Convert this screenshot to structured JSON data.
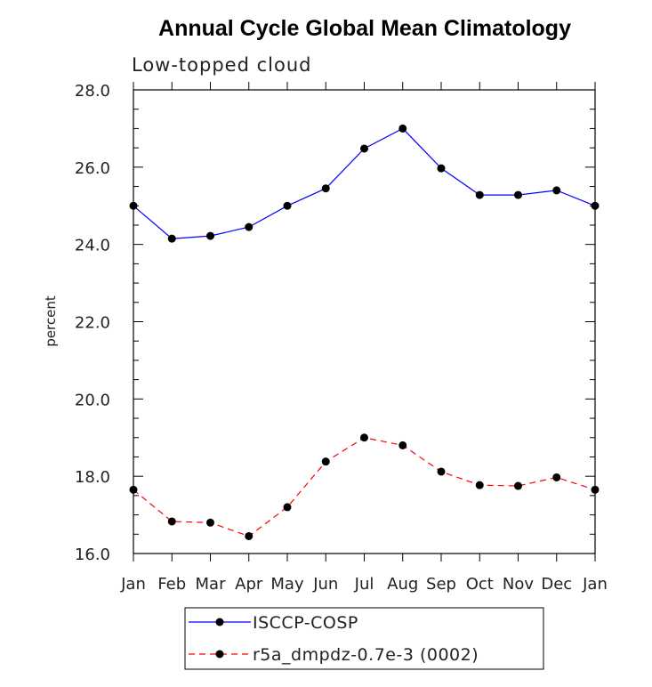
{
  "chart_data": {
    "type": "line",
    "title": "Annual Cycle Global Mean Climatology",
    "subtitle": "Low-topped cloud",
    "xlabel": "",
    "ylabel": "percent",
    "categories": [
      "Jan",
      "Feb",
      "Mar",
      "Apr",
      "May",
      "Jun",
      "Jul",
      "Aug",
      "Sep",
      "Oct",
      "Nov",
      "Dec",
      "Jan"
    ],
    "ylim": [
      16.0,
      28.0
    ],
    "yticks": [
      "16.0",
      "18.0",
      "20.0",
      "22.0",
      "24.0",
      "26.0",
      "28.0"
    ],
    "yticks_values": [
      16,
      18,
      20,
      22,
      24,
      26,
      28
    ],
    "series": [
      {
        "name": "ISCCP-COSP",
        "color": "#0000ff",
        "dash": "solid",
        "values": [
          25.0,
          24.15,
          24.22,
          24.45,
          25.0,
          25.45,
          26.48,
          27.0,
          25.97,
          25.28,
          25.28,
          25.4,
          25.0
        ]
      },
      {
        "name": "r5a_dmpdz-0.7e-3 (0002)",
        "color": "#ff0000",
        "dash": "dashed",
        "values": [
          17.65,
          16.83,
          16.8,
          16.45,
          17.2,
          18.38,
          19.0,
          18.8,
          18.12,
          17.77,
          17.75,
          17.97,
          17.65
        ]
      }
    ]
  }
}
